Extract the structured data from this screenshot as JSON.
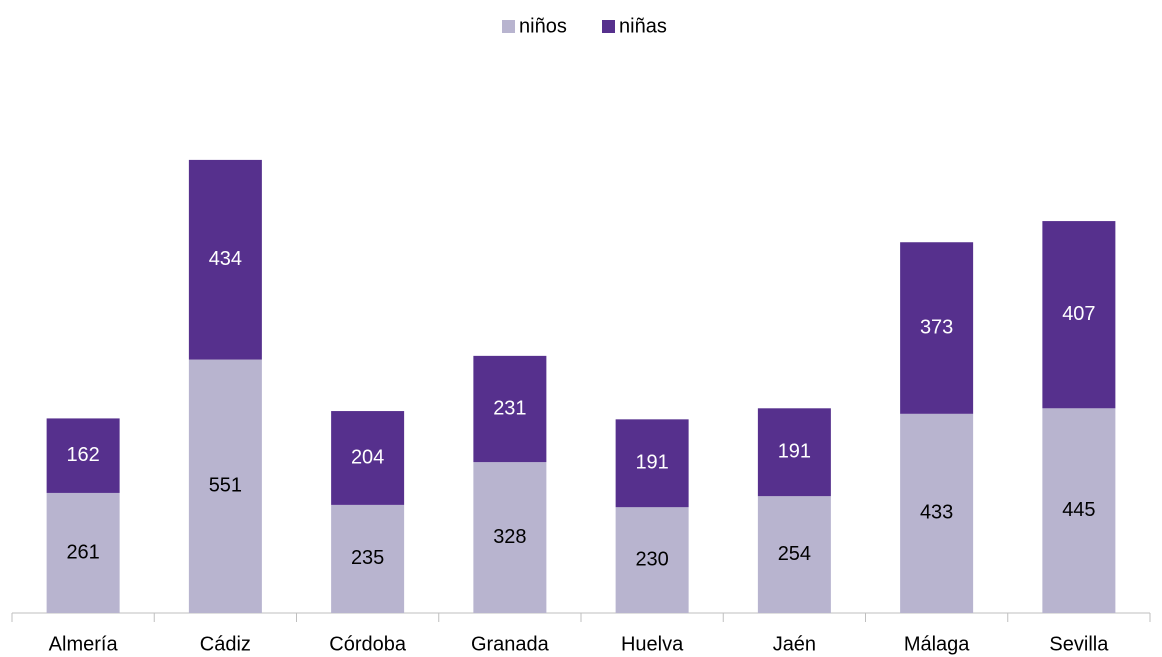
{
  "chart_data": {
    "type": "stacked_bar",
    "categories": [
      "Almería",
      "Cádiz",
      "Córdoba",
      "Granada",
      "Huelva",
      "Jaén",
      "Málaga",
      "Sevilla"
    ],
    "series": [
      {
        "name": "niños",
        "color": "#b8b4cf",
        "values": [
          261,
          551,
          235,
          328,
          230,
          254,
          433,
          445
        ]
      },
      {
        "name": "niñas",
        "color": "#56308d",
        "values": [
          162,
          434,
          204,
          231,
          191,
          191,
          373,
          407
        ]
      }
    ],
    "ylim": [
      0,
      1200
    ],
    "legend": "top"
  }
}
